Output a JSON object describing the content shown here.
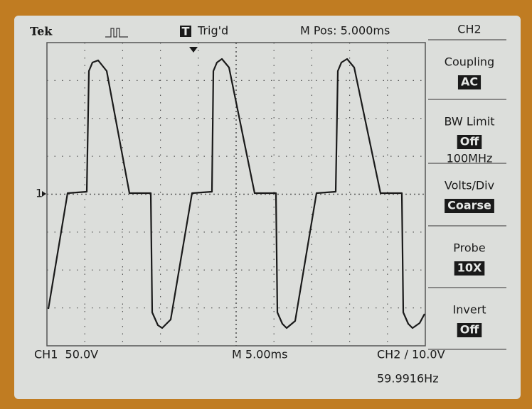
{
  "header": {
    "brand": "Tek",
    "trigger_icon": "T",
    "trigger_status": "Trig'd",
    "position": "M Pos: 5.000ms",
    "channel": "CH2"
  },
  "channel_marker": "1",
  "menu": [
    {
      "label": "Coupling",
      "value": "AC"
    },
    {
      "label": "BW Limit",
      "value": "Off",
      "note": "100MHz"
    },
    {
      "label": "Volts/Div",
      "value": "Coarse"
    },
    {
      "label": "Probe",
      "value": "10X"
    },
    {
      "label": "Invert",
      "value": "Off"
    }
  ],
  "footer": {
    "ch1": "CH1  50.0V",
    "timebase": "M 5.00ms",
    "ch2": "CH2 ∕ 10.0V",
    "frequency": "59.9916Hz"
  }
}
